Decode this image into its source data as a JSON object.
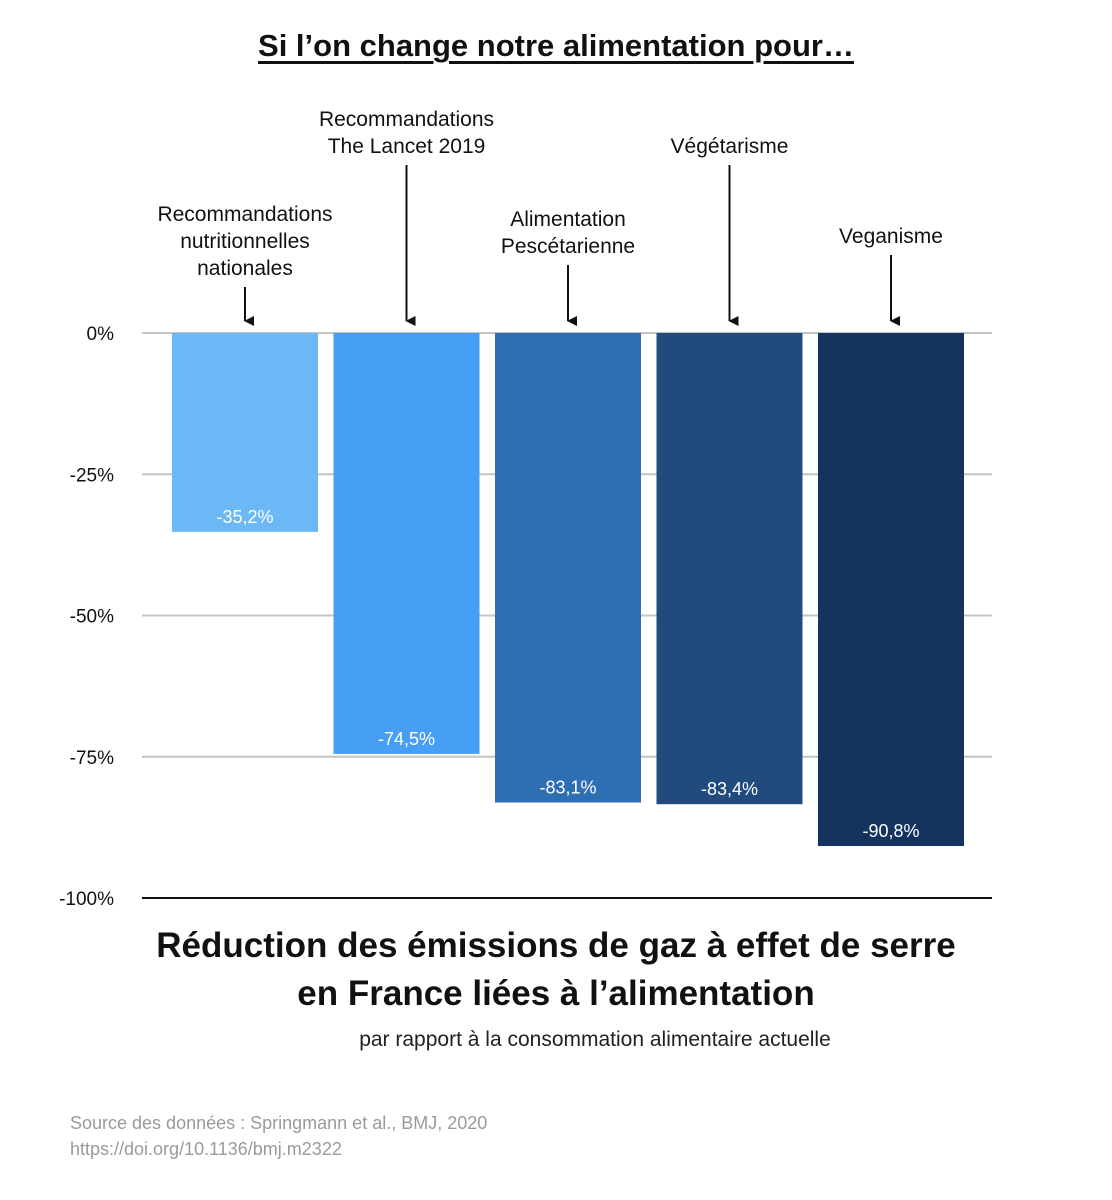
{
  "header": {
    "title": "Si l’on change notre alimentation pour…"
  },
  "chart_data": {
    "type": "bar",
    "categories": [
      "Recommandations nutritionnelles nationales",
      "Recommandations The Lancet 2019",
      "Alimentation Pescétarienne",
      "Végétarisme",
      "Veganisme"
    ],
    "category_lines": [
      [
        "Recommandations",
        "nutritionnelles",
        "nationales"
      ],
      [
        "Recommandations",
        "The Lancet 2019"
      ],
      [
        "Alimentation",
        "Pescétarienne"
      ],
      [
        "Végétarisme"
      ],
      [
        "Veganisme"
      ]
    ],
    "values": [
      -35.2,
      -74.5,
      -83.1,
      -83.4,
      -90.8
    ],
    "value_labels": [
      "-35,2%",
      "-74,5%",
      "-83,1%",
      "-83,4%",
      "-90,8%"
    ],
    "bar_colors": [
      "#6cb8f6",
      "#479ef5",
      "#2e6fb4",
      "#214b7d",
      "#15335f"
    ],
    "ylim": [
      -100,
      0
    ],
    "yticks": [
      0,
      -25,
      -50,
      -75,
      -100
    ],
    "ytick_labels": [
      "0%",
      "-25%",
      "-50%",
      "-75%",
      "-100%"
    ],
    "grid": true,
    "title": "Réduction des émissions de gaz à effet de serre en France liées à l’alimentation",
    "title_lines": [
      "Réduction des émissions de gaz à effet de serre",
      "en France liées à l’alimentation"
    ],
    "subtitle": "par rapport à la consommation alimentaire actuelle"
  },
  "footer": {
    "source_line": "Source des données : Springmann et al., BMJ, 2020",
    "doi_line": "https://doi.org/10.1136/bmj.m2322"
  }
}
